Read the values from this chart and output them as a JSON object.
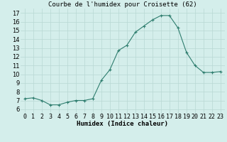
{
  "x": [
    0,
    1,
    2,
    3,
    4,
    5,
    6,
    7,
    8,
    9,
    10,
    11,
    12,
    13,
    14,
    15,
    16,
    17,
    18,
    19,
    20,
    21,
    22,
    23
  ],
  "y": [
    7.2,
    7.3,
    7.0,
    6.5,
    6.5,
    6.8,
    7.0,
    7.0,
    7.2,
    9.3,
    10.5,
    12.7,
    13.3,
    14.8,
    15.5,
    16.2,
    16.7,
    16.7,
    15.3,
    12.5,
    11.0,
    10.2,
    10.2,
    10.3
  ],
  "title": "Courbe de l'humidex pour Croisette (62)",
  "xlabel": "Humidex (Indice chaleur)",
  "ylabel": "",
  "xlim": [
    -0.5,
    23.5
  ],
  "ylim": [
    5.5,
    17.5
  ],
  "yticks": [
    6,
    7,
    8,
    9,
    10,
    11,
    12,
    13,
    14,
    15,
    16,
    17
  ],
  "xtick_labels": [
    "0",
    "1",
    "2",
    "3",
    "4",
    "5",
    "6",
    "7",
    "8",
    "9",
    "10",
    "11",
    "12",
    "13",
    "14",
    "15",
    "16",
    "17",
    "18",
    "19",
    "20",
    "21",
    "22",
    "23"
  ],
  "line_color": "#2e7d6e",
  "marker": "+",
  "bg_color": "#d4eeeb",
  "grid_color": "#b8d8d4",
  "title_fontsize": 6.5,
  "label_fontsize": 6.5,
  "tick_fontsize": 6
}
